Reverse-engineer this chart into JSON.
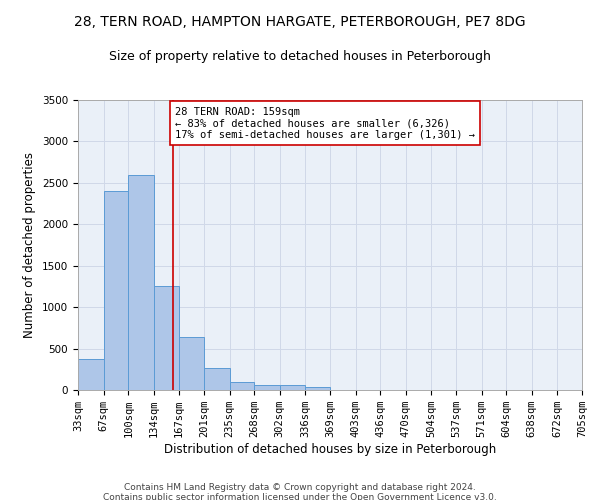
{
  "title_line1": "28, TERN ROAD, HAMPTON HARGATE, PETERBOROUGH, PE7 8DG",
  "title_line2": "Size of property relative to detached houses in Peterborough",
  "xlabel": "Distribution of detached houses by size in Peterborough",
  "ylabel": "Number of detached properties",
  "footer_line1": "Contains HM Land Registry data © Crown copyright and database right 2024.",
  "footer_line2": "Contains public sector information licensed under the Open Government Licence v3.0.",
  "bar_edges": [
    33,
    67,
    100,
    134,
    167,
    201,
    235,
    268,
    302,
    336,
    369,
    403,
    436,
    470,
    504,
    537,
    571,
    604,
    638,
    672,
    705
  ],
  "bar_heights": [
    380,
    2400,
    2600,
    1250,
    640,
    260,
    95,
    60,
    55,
    40,
    0,
    0,
    0,
    0,
    0,
    0,
    0,
    0,
    0,
    0
  ],
  "bar_color": "#aec6e8",
  "bar_edge_color": "#5b9bd5",
  "grid_color": "#d0d8e8",
  "background_color": "#eaf0f8",
  "vline_x": 159,
  "vline_color": "#cc0000",
  "annotation_text": "28 TERN ROAD: 159sqm\n← 83% of detached houses are smaller (6,326)\n17% of semi-detached houses are larger (1,301) →",
  "annotation_box_color": "#ffffff",
  "annotation_box_edge_color": "#cc0000",
  "ylim": [
    0,
    3500
  ],
  "yticks": [
    0,
    500,
    1000,
    1500,
    2000,
    2500,
    3000,
    3500
  ],
  "title_fontsize": 10,
  "subtitle_fontsize": 9,
  "axis_label_fontsize": 8.5,
  "tick_fontsize": 7.5,
  "annotation_fontsize": 7.5
}
